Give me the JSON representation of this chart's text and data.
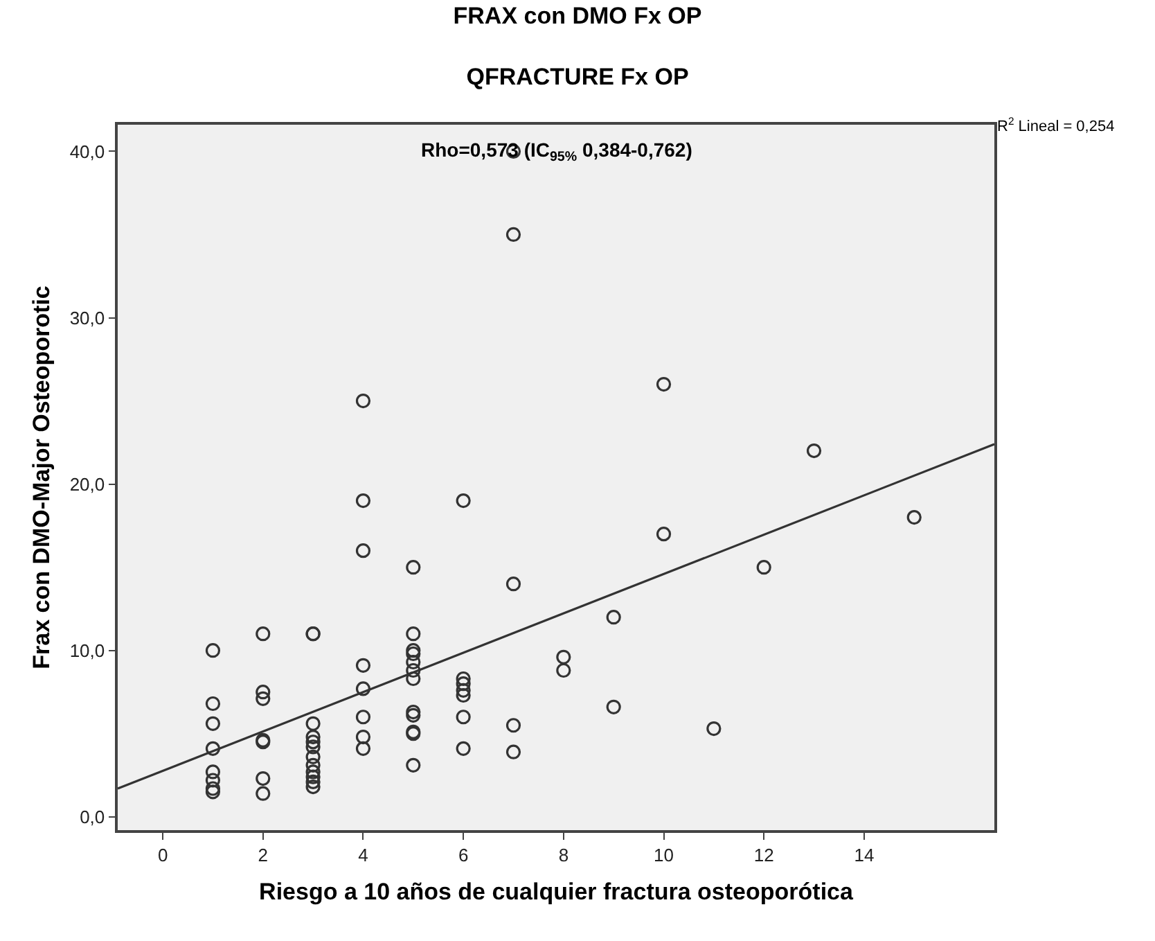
{
  "chart_data": {
    "type": "scatter",
    "title": "FRAX con DMO Fx OP",
    "subtitle": "QFRACTURE Fx OP",
    "xlabel": "Riesgo a 10 años de cualquier fractura osteoporótica",
    "ylabel": "Frax con DMO-Major Osteoporotic",
    "annotations": [
      "Rho=0,573 (IC$_{95%}$ 0,384-0,762)",
      "R$^{2}$ Lineal = 0,254"
    ],
    "series": [
      {
        "marker": "circle",
        "color": "#333333",
        "x": [
          1,
          1,
          1,
          1,
          1,
          1,
          1,
          1,
          2,
          2,
          2,
          2,
          2,
          2,
          2,
          3,
          3,
          3,
          3,
          3,
          3,
          3,
          3,
          3,
          3,
          3,
          3,
          4,
          4,
          4,
          4,
          4,
          4,
          4,
          4,
          5,
          5,
          5,
          5,
          5,
          5,
          5,
          5,
          5,
          5,
          5,
          5,
          6,
          6,
          6,
          6,
          6,
          6,
          6,
          7,
          7,
          7,
          7,
          7,
          8,
          8,
          9,
          9,
          10,
          10,
          11,
          12,
          13,
          15
        ],
        "values": [
          10,
          6.8,
          5.6,
          4.1,
          2.7,
          2.2,
          1.7,
          1.5,
          11,
          7.5,
          7.1,
          4.6,
          4.5,
          2.3,
          1.4,
          11,
          11,
          5.6,
          4.8,
          4.5,
          4.2,
          3.6,
          3.1,
          2.7,
          2.4,
          2.1,
          1.8,
          25,
          19,
          16,
          9.1,
          7.7,
          6,
          4.8,
          4.1,
          15,
          11,
          10,
          9.8,
          9.3,
          8.8,
          8.3,
          6.3,
          6.1,
          5.1,
          5,
          3.1,
          19,
          8.3,
          8,
          7.6,
          7.3,
          6,
          4.1,
          40,
          35,
          14,
          5.5,
          3.9,
          9.6,
          8.8,
          12,
          6.6,
          26,
          17,
          5.3,
          15,
          22,
          18
        ]
      },
      {
        "type": "line",
        "marker": "none",
        "color": "#333333",
        "x": [
          -0.9,
          16.6
        ],
        "values": [
          1.7,
          22.4
        ]
      }
    ],
    "xlim": [
      -0.9,
      16.6
    ],
    "ylim": [
      -0.8,
      41.6
    ],
    "xticks": [
      0,
      2,
      4,
      6,
      8,
      10,
      12,
      14
    ],
    "yticks": [
      {
        "value": 0,
        "label": "0,0"
      },
      {
        "value": 10,
        "label": "10,0"
      },
      {
        "value": 20,
        "label": "20,0"
      },
      {
        "value": 30,
        "label": "30,0"
      },
      {
        "value": 40,
        "label": "40,0"
      }
    ],
    "grid": false
  }
}
